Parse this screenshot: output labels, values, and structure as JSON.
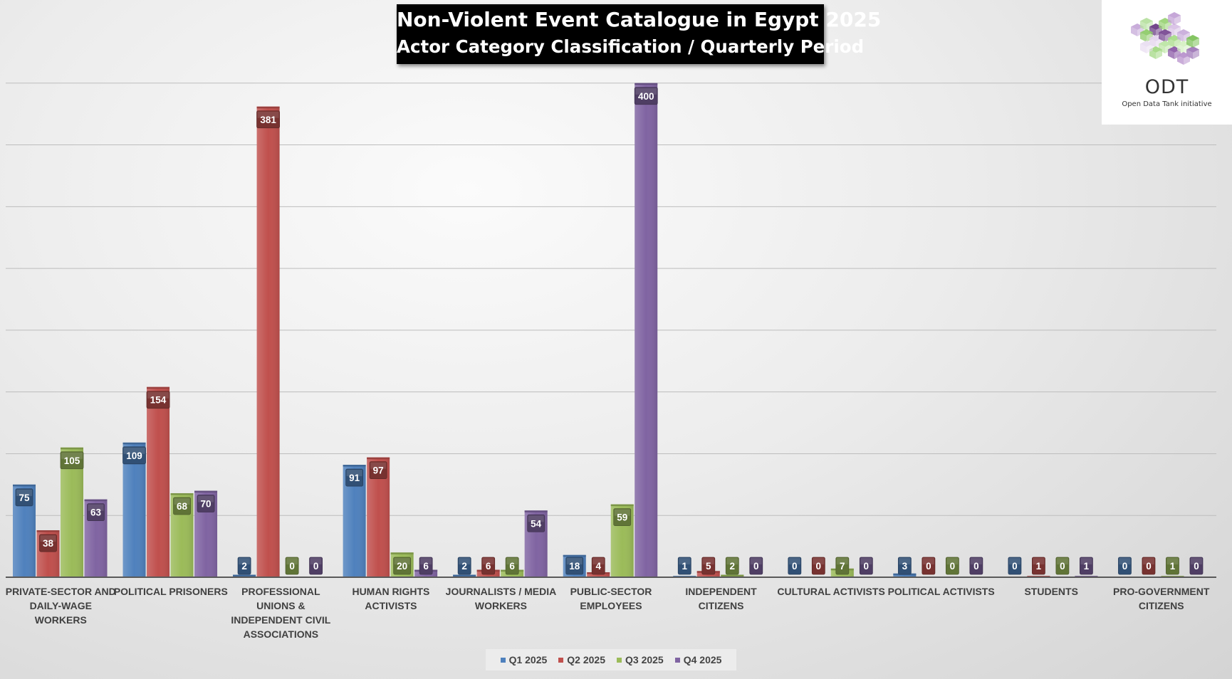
{
  "title": {
    "line1": "Non-Violent Event Catalogue in Egypt 2025",
    "line2": "Actor Category Classification / Quarterly Period"
  },
  "logo": {
    "name": "ODT",
    "subtitle": "Open Data Tank initiative",
    "icon": "cube-cluster-logo"
  },
  "colors": {
    "q1": "#4f81bd",
    "q2": "#c0504d",
    "q3": "#9bbb59",
    "q4": "#8064a2"
  },
  "chart_data": {
    "type": "bar",
    "grid": true,
    "legend_position": "bottom",
    "ylim": [
      0,
      450
    ],
    "categories": [
      [
        "PRIVATE-SECTOR AND",
        "DAILY-WAGE",
        "WORKERS"
      ],
      [
        "POLITICAL PRISONERS"
      ],
      [
        "PROFESSIONAL",
        "UNIONS &",
        "INDEPENDENT CIVIL",
        "ASSOCIATIONS"
      ],
      [
        "HUMAN RIGHTS",
        "ACTIVISTS"
      ],
      [
        "JOURNALISTS / MEDIA",
        "WORKERS"
      ],
      [
        "PUBLIC-SECTOR",
        "EMPLOYEES"
      ],
      [
        "INDEPENDENT",
        "CITIZENS"
      ],
      [
        "CULTURAL ACTIVISTS"
      ],
      [
        "POLITICAL ACTIVISTS"
      ],
      [
        "STUDENTS"
      ],
      [
        "PRO-GOVERNMENT",
        "CITIZENS"
      ]
    ],
    "series": [
      {
        "name": "Q1 2025",
        "values": [
          75,
          109,
          2,
          91,
          2,
          18,
          1,
          0,
          3,
          0,
          0
        ]
      },
      {
        "name": "Q2 2025",
        "values": [
          38,
          154,
          381,
          97,
          6,
          4,
          5,
          0,
          0,
          1,
          0
        ]
      },
      {
        "name": "Q3 2025",
        "values": [
          105,
          68,
          0,
          20,
          6,
          59,
          2,
          7,
          0,
          0,
          1
        ]
      },
      {
        "name": "Q4 2025",
        "values": [
          63,
          70,
          0,
          6,
          54,
          400,
          0,
          0,
          0,
          1,
          0
        ]
      }
    ]
  }
}
